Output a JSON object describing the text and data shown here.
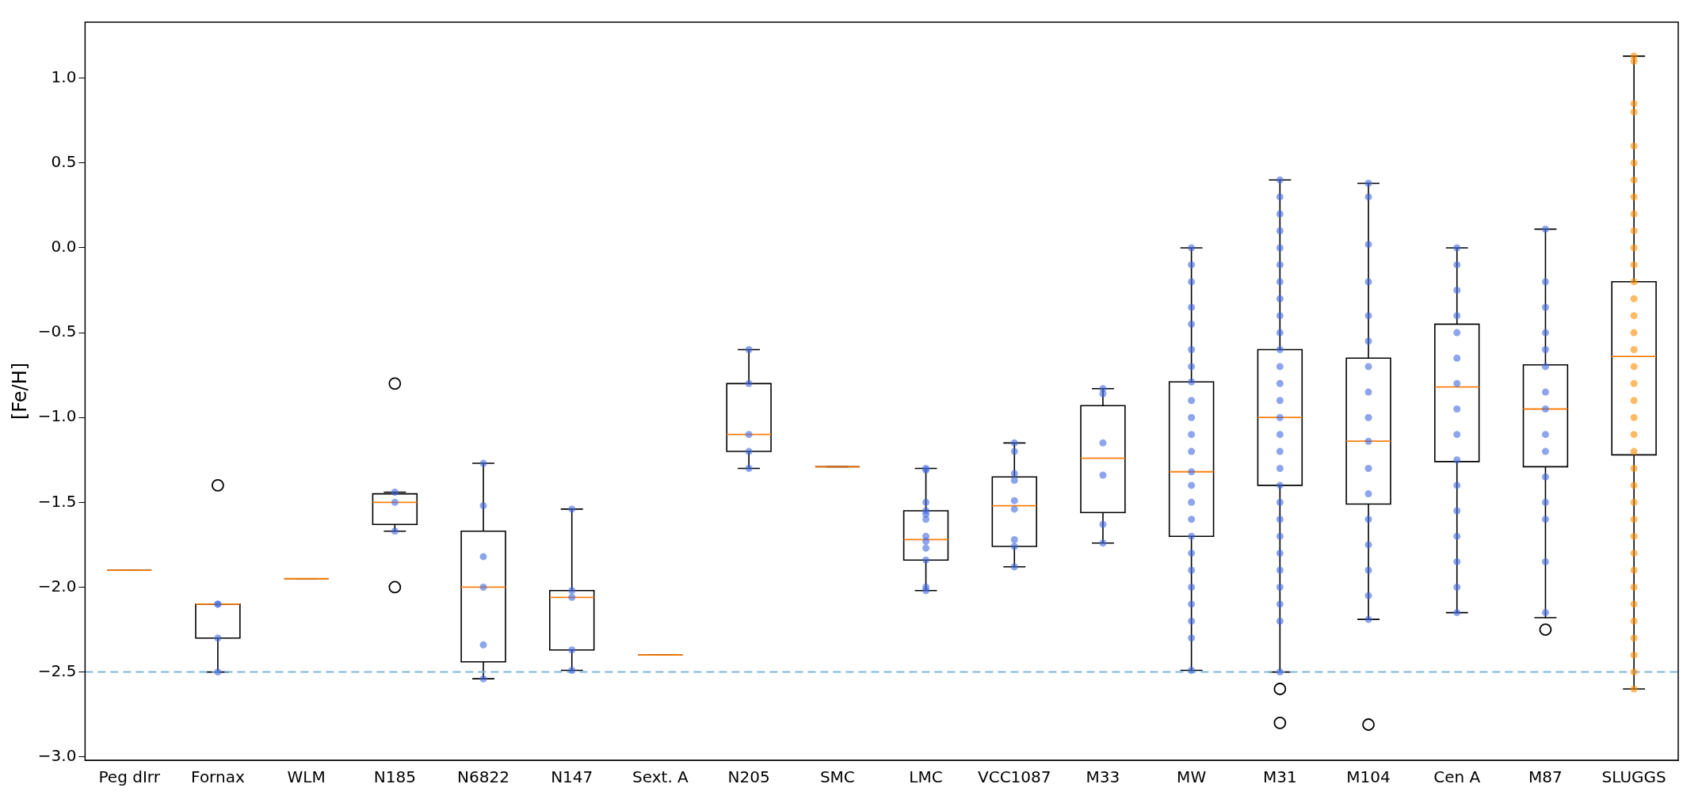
{
  "chart_data": {
    "type": "box",
    "ylabel": "[Fe/H]",
    "categories": [
      "Peg dIrr",
      "Fornax",
      "WLM",
      "N185",
      "N6822",
      "N147",
      "Sext. A",
      "N205",
      "SMC",
      "LMC",
      "VCC1087",
      "M33",
      "MW",
      "M31",
      "M104",
      "Cen A",
      "M87",
      "SLUGGS"
    ],
    "boxes": [
      {
        "low": -1.9,
        "q1": -1.9,
        "median": -1.9,
        "q3": -1.9,
        "high": -1.9
      },
      {
        "low": -2.5,
        "q1": -2.3,
        "median": -2.1,
        "q3": -2.1,
        "high": -2.1,
        "outliers": [
          -1.4
        ]
      },
      {
        "low": -1.95,
        "q1": -1.95,
        "median": -1.95,
        "q3": -1.95,
        "high": -1.95
      },
      {
        "low": -1.67,
        "q1": -1.63,
        "median": -1.5,
        "q3": -1.45,
        "high": -1.44,
        "outliers": [
          -0.8,
          -2.0
        ]
      },
      {
        "low": -2.54,
        "q1": -2.44,
        "median": -2.0,
        "q3": -1.67,
        "high": -1.27
      },
      {
        "low": -2.49,
        "q1": -2.37,
        "median": -2.06,
        "q3": -2.02,
        "high": -1.54
      },
      {
        "low": -2.4,
        "q1": -2.4,
        "median": -2.4,
        "q3": -2.4,
        "high": -2.4
      },
      {
        "low": -1.3,
        "q1": -1.2,
        "median": -1.1,
        "q3": -0.8,
        "high": -0.6
      },
      {
        "low": -1.29,
        "q1": -1.29,
        "median": -1.29,
        "q3": -1.29,
        "high": -1.29
      },
      {
        "low": -2.02,
        "q1": -1.84,
        "median": -1.72,
        "q3": -1.55,
        "high": -1.3
      },
      {
        "low": -1.88,
        "q1": -1.76,
        "median": -1.52,
        "q3": -1.35,
        "high": -1.15
      },
      {
        "low": -1.74,
        "q1": -1.56,
        "median": -1.24,
        "q3": -0.93,
        "high": -0.83
      },
      {
        "low": -2.49,
        "q1": -1.7,
        "median": -1.32,
        "q3": -0.79,
        "high": 0.0
      },
      {
        "low": -2.5,
        "q1": -1.4,
        "median": -1.0,
        "q3": -0.6,
        "high": 0.4,
        "outliers": [
          -2.6,
          -2.8
        ]
      },
      {
        "low": -2.19,
        "q1": -1.51,
        "median": -1.14,
        "q3": -0.65,
        "high": 0.38,
        "outliers": [
          -2.81
        ]
      },
      {
        "low": -2.15,
        "q1": -1.26,
        "median": -0.82,
        "q3": -0.45,
        "high": 0.0
      },
      {
        "low": -2.18,
        "q1": -1.29,
        "median": -0.95,
        "q3": -0.69,
        "high": 0.11,
        "outliers": [
          -2.25
        ]
      },
      {
        "low": -2.6,
        "q1": -1.22,
        "median": -0.64,
        "q3": -0.2,
        "high": 1.13
      }
    ],
    "series": [
      {
        "type": "scatter",
        "color": "#4169e1",
        "x": [
          "Fornax",
          "Fornax",
          "Fornax",
          "Fornax",
          "N185",
          "N185",
          "N185",
          "N6822",
          "N6822",
          "N6822",
          "N6822",
          "N6822",
          "N6822",
          "N147",
          "N147",
          "N147",
          "N147",
          "N147",
          "N205",
          "N205",
          "N205",
          "N205",
          "N205",
          "LMC",
          "LMC",
          "LMC",
          "LMC",
          "LMC",
          "LMC",
          "LMC",
          "LMC",
          "LMC",
          "LMC",
          "LMC",
          "LMC",
          "VCC1087",
          "VCC1087",
          "VCC1087",
          "VCC1087",
          "VCC1087",
          "VCC1087",
          "VCC1087",
          "VCC1087",
          "VCC1087",
          "M33",
          "M33",
          "M33",
          "M33",
          "M33",
          "M33",
          "MW",
          "MW",
          "MW",
          "MW",
          "MW",
          "MW",
          "MW",
          "MW",
          "MW",
          "MW",
          "MW",
          "MW",
          "MW",
          "MW",
          "MW",
          "MW",
          "MW",
          "MW",
          "MW",
          "MW",
          "MW",
          "MW",
          "MW",
          "MW",
          "M31",
          "M31",
          "M31",
          "M31",
          "M31",
          "M31",
          "M31",
          "M31",
          "M31",
          "M31",
          "M31",
          "M31",
          "M31",
          "M31",
          "M31",
          "M31",
          "M31",
          "M31",
          "M31",
          "M31",
          "M31",
          "M31",
          "M31",
          "M31",
          "M31",
          "M31",
          "M31",
          "M31",
          "M104",
          "M104",
          "M104",
          "M104",
          "M104",
          "M104",
          "M104",
          "M104",
          "M104",
          "M104",
          "M104",
          "M104",
          "M104",
          "M104",
          "M104",
          "M104",
          "M104",
          "Cen A",
          "Cen A",
          "Cen A",
          "Cen A",
          "Cen A",
          "Cen A",
          "Cen A",
          "Cen A",
          "Cen A",
          "Cen A",
          "Cen A",
          "Cen A",
          "Cen A",
          "Cen A",
          "Cen A",
          "Cen A",
          "M87",
          "M87",
          "M87",
          "M87",
          "M87",
          "M87",
          "M87",
          "M87",
          "M87",
          "M87",
          "M87",
          "M87",
          "M87",
          "M87",
          "M87"
        ],
        "values": [
          -2.1,
          -2.1,
          -2.3,
          -2.5,
          -1.44,
          -1.5,
          -1.67,
          -1.27,
          -1.52,
          -1.82,
          -2.0,
          -2.34,
          -2.54,
          -1.54,
          -2.02,
          -2.06,
          -2.37,
          -2.49,
          -0.6,
          -0.8,
          -1.1,
          -1.2,
          -1.3,
          -1.3,
          -1.31,
          -1.5,
          -1.55,
          -1.57,
          -1.6,
          -1.7,
          -1.73,
          -1.77,
          -1.84,
          -2.0,
          -2.02,
          -1.15,
          -1.2,
          -1.33,
          -1.37,
          -1.49,
          -1.54,
          -1.72,
          -1.76,
          -1.88,
          -0.83,
          -0.86,
          -1.15,
          -1.34,
          -1.63,
          -1.74,
          0.0,
          -0.1,
          -0.2,
          -0.35,
          -0.45,
          -0.6,
          -0.7,
          -0.79,
          -0.9,
          -1.0,
          -1.1,
          -1.2,
          -1.32,
          -1.4,
          -1.5,
          -1.6,
          -1.7,
          -1.8,
          -1.9,
          -2.0,
          -2.1,
          -2.2,
          -2.3,
          -2.49,
          0.4,
          0.3,
          0.2,
          0.1,
          0.0,
          -0.1,
          -0.2,
          -0.3,
          -0.4,
          -0.5,
          -0.6,
          -0.7,
          -0.8,
          -0.9,
          -1.0,
          -1.1,
          -1.2,
          -1.3,
          -1.4,
          -1.5,
          -1.6,
          -1.7,
          -1.8,
          -1.9,
          -2.0,
          -2.1,
          -2.2,
          -2.5,
          0.38,
          0.3,
          0.02,
          -0.2,
          -0.4,
          -0.55,
          -0.7,
          -0.85,
          -1.0,
          -1.14,
          -1.3,
          -1.45,
          -1.6,
          -1.75,
          -1.9,
          -2.05,
          -2.19,
          0.0,
          -0.1,
          -0.25,
          -0.4,
          -0.5,
          -0.65,
          -0.8,
          -0.95,
          -1.1,
          -1.25,
          -1.4,
          -1.55,
          -1.7,
          -1.85,
          -2.0,
          -2.15,
          0.11,
          -0.2,
          -0.35,
          -0.5,
          -0.6,
          -0.7,
          -0.85,
          -0.95,
          -1.1,
          -1.2,
          -1.35,
          -1.5,
          -1.6,
          -1.85,
          -2.15
        ]
      },
      {
        "type": "scatter",
        "color": "#ff8c00",
        "x": [
          "SLUGGS",
          "SLUGGS",
          "SLUGGS",
          "SLUGGS",
          "SLUGGS",
          "SLUGGS",
          "SLUGGS",
          "SLUGGS",
          "SLUGGS",
          "SLUGGS",
          "SLUGGS",
          "SLUGGS",
          "SLUGGS",
          "SLUGGS",
          "SLUGGS",
          "SLUGGS",
          "SLUGGS",
          "SLUGGS",
          "SLUGGS",
          "SLUGGS",
          "SLUGGS",
          "SLUGGS",
          "SLUGGS",
          "SLUGGS",
          "SLUGGS",
          "SLUGGS",
          "SLUGGS",
          "SLUGGS",
          "SLUGGS",
          "SLUGGS",
          "SLUGGS",
          "SLUGGS",
          "SLUGGS",
          "SLUGGS",
          "SLUGGS",
          "SLUGGS",
          "SLUGGS"
        ],
        "values": [
          1.13,
          1.1,
          0.85,
          0.8,
          0.6,
          0.5,
          0.4,
          0.3,
          0.2,
          0.1,
          0.0,
          -0.1,
          -0.2,
          -0.3,
          -0.4,
          -0.5,
          -0.6,
          -0.7,
          -0.8,
          -0.9,
          -1.0,
          -1.1,
          -1.2,
          -1.3,
          -1.4,
          -1.5,
          -1.6,
          -1.7,
          -1.8,
          -1.9,
          -2.0,
          -2.1,
          -2.2,
          -2.3,
          -2.4,
          -2.5,
          -2.6
        ]
      }
    ],
    "ref_lines": [
      {
        "axis": "y",
        "value": -2.5,
        "color": "#7fb6d9",
        "line_style": "dashed"
      }
    ],
    "ylim": [
      -3.02,
      1.33
    ],
    "yticks": [
      {
        "value": -3,
        "label": "−3.0"
      },
      {
        "value": -2.5,
        "label": "−2.5"
      },
      {
        "value": -2,
        "label": "−2.0"
      },
      {
        "value": -1.5,
        "label": "−1.5"
      },
      {
        "value": -1,
        "label": "−1.0"
      },
      {
        "value": -0.5,
        "label": "−0.5"
      },
      {
        "value": 0,
        "label": "0.0"
      },
      {
        "value": 0.5,
        "label": "0.5"
      },
      {
        "value": 1,
        "label": "1.0"
      }
    ],
    "grid": false,
    "legend": false
  }
}
